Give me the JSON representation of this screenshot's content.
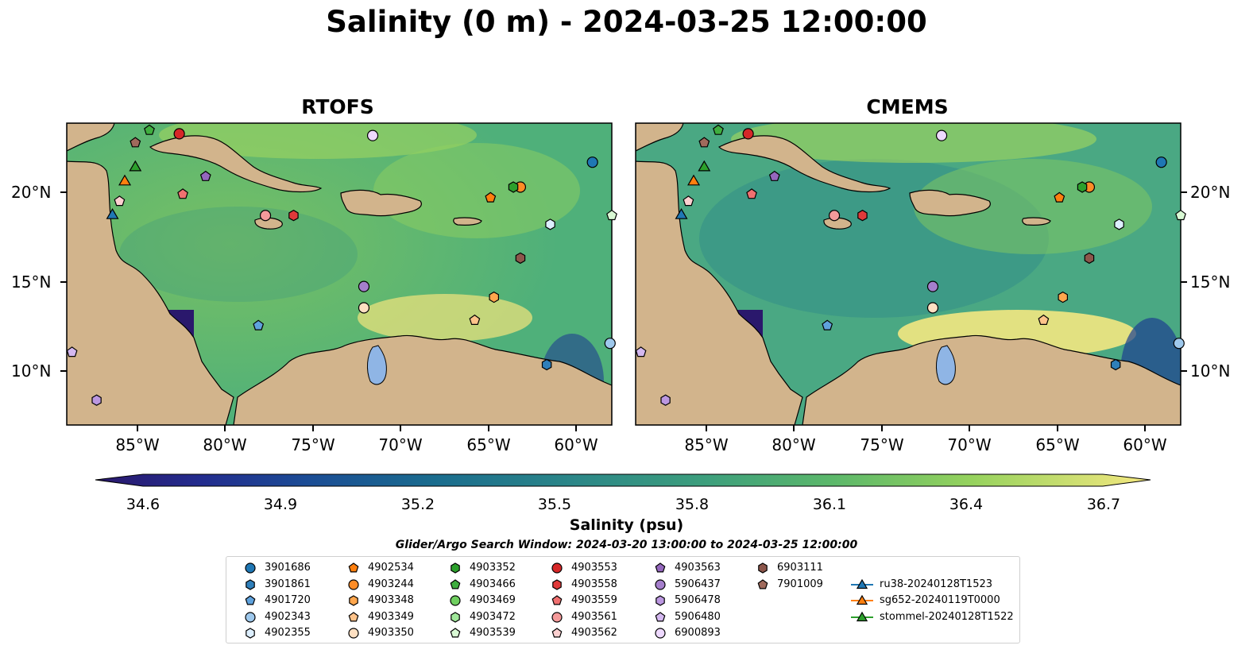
{
  "title": "Salinity (0 m) - 2024-03-25 12:00:00",
  "panels": [
    {
      "title": "RTOFS"
    },
    {
      "title": "CMEMS"
    }
  ],
  "axes": {
    "lat_labels": [
      "20°N",
      "15°N",
      "10°N"
    ],
    "lon_labels": [
      "85°W",
      "80°W",
      "75°W",
      "70°W",
      "65°W",
      "60°W"
    ],
    "lon_range": [
      -89,
      -58
    ],
    "lat_range": [
      7,
      24
    ]
  },
  "colorbar": {
    "label": "Salinity (psu)",
    "ticks": [
      "34.6",
      "34.9",
      "35.2",
      "35.5",
      "35.8",
      "36.1",
      "36.4",
      "36.7"
    ],
    "range": [
      34.6,
      36.7
    ],
    "colormap": "haline",
    "extend": "both"
  },
  "subtitle": "Glider/Argo Search Window: 2024-03-20 13:00:00 to 2024-03-25 12:00:00",
  "colors": {
    "land": "#d2b48c",
    "deep_low_salinity": "#2a186c",
    "lake": "#8fb5e5"
  },
  "legend": [
    {
      "label": "3901686",
      "marker": "circle",
      "color": "#1f77b4"
    },
    {
      "label": "3901861",
      "marker": "hexagon",
      "color": "#2f7fba"
    },
    {
      "label": "4901720",
      "marker": "pentagon",
      "color": "#5fa2dd"
    },
    {
      "label": "4902343",
      "marker": "circle",
      "color": "#9ec8ec"
    },
    {
      "label": "4902355",
      "marker": "hexagon",
      "color": "#ddefff"
    },
    {
      "label": "4902534",
      "marker": "pentagon",
      "color": "#ff7f0e"
    },
    {
      "label": "4903244",
      "marker": "circle",
      "color": "#ff8c26"
    },
    {
      "label": "4903348",
      "marker": "hexagon",
      "color": "#ffa64d"
    },
    {
      "label": "4903349",
      "marker": "pentagon",
      "color": "#ffc38a"
    },
    {
      "label": "4903350",
      "marker": "circle",
      "color": "#ffe0c2"
    },
    {
      "label": "4903352",
      "marker": "hexagon",
      "color": "#2ca02c"
    },
    {
      "label": "4903466",
      "marker": "pentagon",
      "color": "#3fae3f"
    },
    {
      "label": "4903469",
      "marker": "circle",
      "color": "#6fcf5f"
    },
    {
      "label": "4903472",
      "marker": "hexagon",
      "color": "#a0e89a"
    },
    {
      "label": "4903539",
      "marker": "pentagon",
      "color": "#d9f9d4"
    },
    {
      "label": "4903553",
      "marker": "circle",
      "color": "#d62728"
    },
    {
      "label": "4903558",
      "marker": "hexagon",
      "color": "#e03a3a"
    },
    {
      "label": "4903559",
      "marker": "pentagon",
      "color": "#f07070"
    },
    {
      "label": "4903561",
      "marker": "circle",
      "color": "#f59a9a"
    },
    {
      "label": "4903562",
      "marker": "pentagon",
      "color": "#fcd0d0"
    },
    {
      "label": "4903563",
      "marker": "pentagon",
      "color": "#9467bd"
    },
    {
      "label": "5906437",
      "marker": "circle",
      "color": "#a57fcc"
    },
    {
      "label": "5906478",
      "marker": "hexagon",
      "color": "#bb97e0"
    },
    {
      "label": "5906480",
      "marker": "pentagon",
      "color": "#d4b8f0"
    },
    {
      "label": "6900893",
      "marker": "circle",
      "color": "#eed9ff"
    },
    {
      "label": "6903111",
      "marker": "hexagon",
      "color": "#8c564b"
    },
    {
      "label": "7901009",
      "marker": "pentagon",
      "color": "#a06a5c"
    },
    {
      "label": "ru38-20240128T1523",
      "marker": "triangle-line",
      "color": "#1f77b4"
    },
    {
      "label": "sg652-20240119T0000",
      "marker": "triangle-line",
      "color": "#ff7f0e"
    },
    {
      "label": "stommel-20240128T1522",
      "marker": "triangle-line",
      "color": "#2ca02c"
    }
  ],
  "map_points": [
    {
      "id": "3901686",
      "lon": -59.1,
      "lat": 21.8
    },
    {
      "id": "3901861",
      "lon": -61.7,
      "lat": 10.4
    },
    {
      "id": "4901720",
      "lon": -78.1,
      "lat": 12.6
    },
    {
      "id": "4902343",
      "lon": -58.1,
      "lat": 11.6
    },
    {
      "id": "4902355",
      "lon": -61.5,
      "lat": 18.3
    },
    {
      "id": "4902534",
      "lon": -64.9,
      "lat": 19.8
    },
    {
      "id": "4903244",
      "lon": -63.2,
      "lat": 20.4
    },
    {
      "id": "4903348",
      "lon": -64.7,
      "lat": 14.2
    },
    {
      "id": "4903349",
      "lon": -65.8,
      "lat": 12.9
    },
    {
      "id": "4903350",
      "lon": -72.1,
      "lat": 13.6
    },
    {
      "id": "4903352",
      "lon": -63.6,
      "lat": 20.4
    },
    {
      "id": "4903466",
      "lon": -84.3,
      "lat": 23.6
    },
    {
      "id": "4903539",
      "lon": -58.0,
      "lat": 18.8
    },
    {
      "id": "4903553",
      "lon": -82.6,
      "lat": 23.4
    },
    {
      "id": "4903558",
      "lon": -76.1,
      "lat": 18.8
    },
    {
      "id": "4903559",
      "lon": -82.4,
      "lat": 20.0
    },
    {
      "id": "4903561",
      "lon": -77.7,
      "lat": 18.8
    },
    {
      "id": "4903562",
      "lon": -86.0,
      "lat": 19.6
    },
    {
      "id": "4903563",
      "lon": -81.1,
      "lat": 21.0
    },
    {
      "id": "5906437",
      "lon": -72.1,
      "lat": 14.8
    },
    {
      "id": "5906478",
      "lon": -87.3,
      "lat": 8.4
    },
    {
      "id": "5906480",
      "lon": -88.7,
      "lat": 11.1
    },
    {
      "id": "6900893",
      "lon": -71.6,
      "lat": 23.3
    },
    {
      "id": "6903111",
      "lon": -63.2,
      "lat": 16.4
    },
    {
      "id": "7901009",
      "lon": -85.1,
      "lat": 22.9
    },
    {
      "id": "ru38-20240128T1523",
      "lon": -86.4,
      "lat": 18.8
    },
    {
      "id": "sg652-20240119T0000",
      "lon": -85.7,
      "lat": 20.7
    },
    {
      "id": "stommel-20240128T1522",
      "lon": -85.1,
      "lat": 21.5
    }
  ]
}
